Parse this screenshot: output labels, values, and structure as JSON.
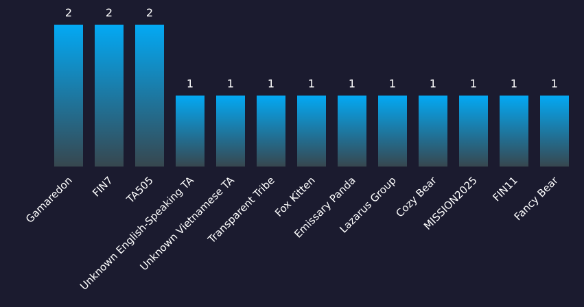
{
  "chart_data": {
    "type": "bar",
    "categories": [
      "Gamaredon",
      "FIN7",
      "TA505",
      "Unknown English-Speaking TA",
      "Unknown Vietnamese TA",
      "Transparent Tribe",
      "Fox Kitten",
      "Emissary Panda",
      "Lazarus Group",
      "Cozy Bear",
      "MISSION2025",
      "FIN11",
      "Fancy Bear"
    ],
    "values": [
      2,
      2,
      2,
      1,
      1,
      1,
      1,
      1,
      1,
      1,
      1,
      1,
      1
    ],
    "ylim": [
      0,
      2
    ],
    "grid": false,
    "data_labels": true,
    "colors": {
      "background": "#1b1b2f",
      "bar_top": "#03a9f4",
      "bar_bottom": "#37474f",
      "text": "#ffffff"
    }
  }
}
